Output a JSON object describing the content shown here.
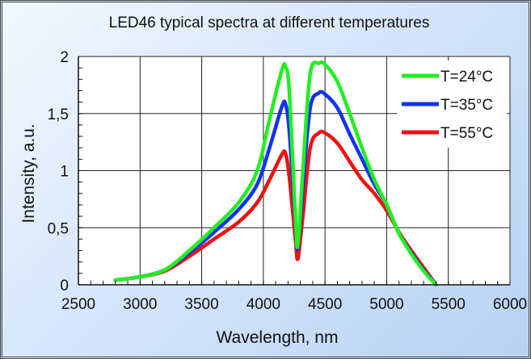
{
  "chart_data": {
    "type": "line",
    "title": "LED46 typical spectra at different temperatures",
    "xlabel": "Wavelength, nm",
    "ylabel": "Intensity, a.u.",
    "xlim": [
      2500,
      6000
    ],
    "ylim": [
      0,
      2
    ],
    "xticks": [
      2500,
      3000,
      3500,
      4000,
      4500,
      5000,
      5500,
      6000
    ],
    "xtick_labels": [
      "2500",
      "3000",
      "3500",
      "4000",
      "4500",
      "5000",
      "5500",
      "6000"
    ],
    "yticks": [
      0,
      0.5,
      1,
      1.5,
      2
    ],
    "ytick_labels": [
      "0",
      "0,5",
      "1",
      "1,5",
      "2"
    ],
    "grid": true,
    "legend": "top-right",
    "series": [
      {
        "name": "T=24°C",
        "color": "#22ee22",
        "x": [
          2800,
          3000,
          3200,
          3400,
          3600,
          3800,
          3950,
          4050,
          4150,
          4180,
          4210,
          4260,
          4280,
          4320,
          4380,
          4450,
          4500,
          4600,
          4700,
          4800,
          4900,
          5000,
          5100,
          5200,
          5300,
          5400
        ],
        "y": [
          0.04,
          0.07,
          0.13,
          0.3,
          0.5,
          0.72,
          1.0,
          1.45,
          1.88,
          1.91,
          1.7,
          0.6,
          0.35,
          1.0,
          1.85,
          1.94,
          1.93,
          1.78,
          1.5,
          1.2,
          0.92,
          0.7,
          0.45,
          0.27,
          0.12,
          0.0
        ]
      },
      {
        "name": "T=35°C",
        "color": "#1133ee",
        "x": [
          2800,
          3000,
          3200,
          3400,
          3600,
          3800,
          3950,
          4050,
          4150,
          4180,
          4210,
          4260,
          4280,
          4320,
          4380,
          4450,
          4500,
          4600,
          4700,
          4800,
          4900,
          5000,
          5100,
          5200,
          5300,
          5400
        ],
        "y": [
          0.04,
          0.07,
          0.13,
          0.28,
          0.46,
          0.66,
          0.88,
          1.2,
          1.56,
          1.58,
          1.35,
          0.55,
          0.32,
          0.85,
          1.55,
          1.68,
          1.67,
          1.55,
          1.32,
          1.1,
          0.88,
          0.7,
          0.45,
          0.28,
          0.13,
          0.0
        ]
      },
      {
        "name": "T=55°C",
        "color": "#ee1111",
        "x": [
          2800,
          3000,
          3200,
          3400,
          3600,
          3800,
          3950,
          4050,
          4150,
          4180,
          4210,
          4260,
          4280,
          4320,
          4380,
          4450,
          4500,
          4600,
          4700,
          4800,
          4900,
          5000,
          5100,
          5200,
          5300,
          5400
        ],
        "y": [
          0.04,
          0.07,
          0.12,
          0.25,
          0.4,
          0.55,
          0.72,
          0.92,
          1.14,
          1.15,
          0.95,
          0.4,
          0.23,
          0.6,
          1.2,
          1.33,
          1.33,
          1.24,
          1.08,
          0.92,
          0.8,
          0.65,
          0.46,
          0.3,
          0.15,
          0.0
        ]
      }
    ]
  }
}
